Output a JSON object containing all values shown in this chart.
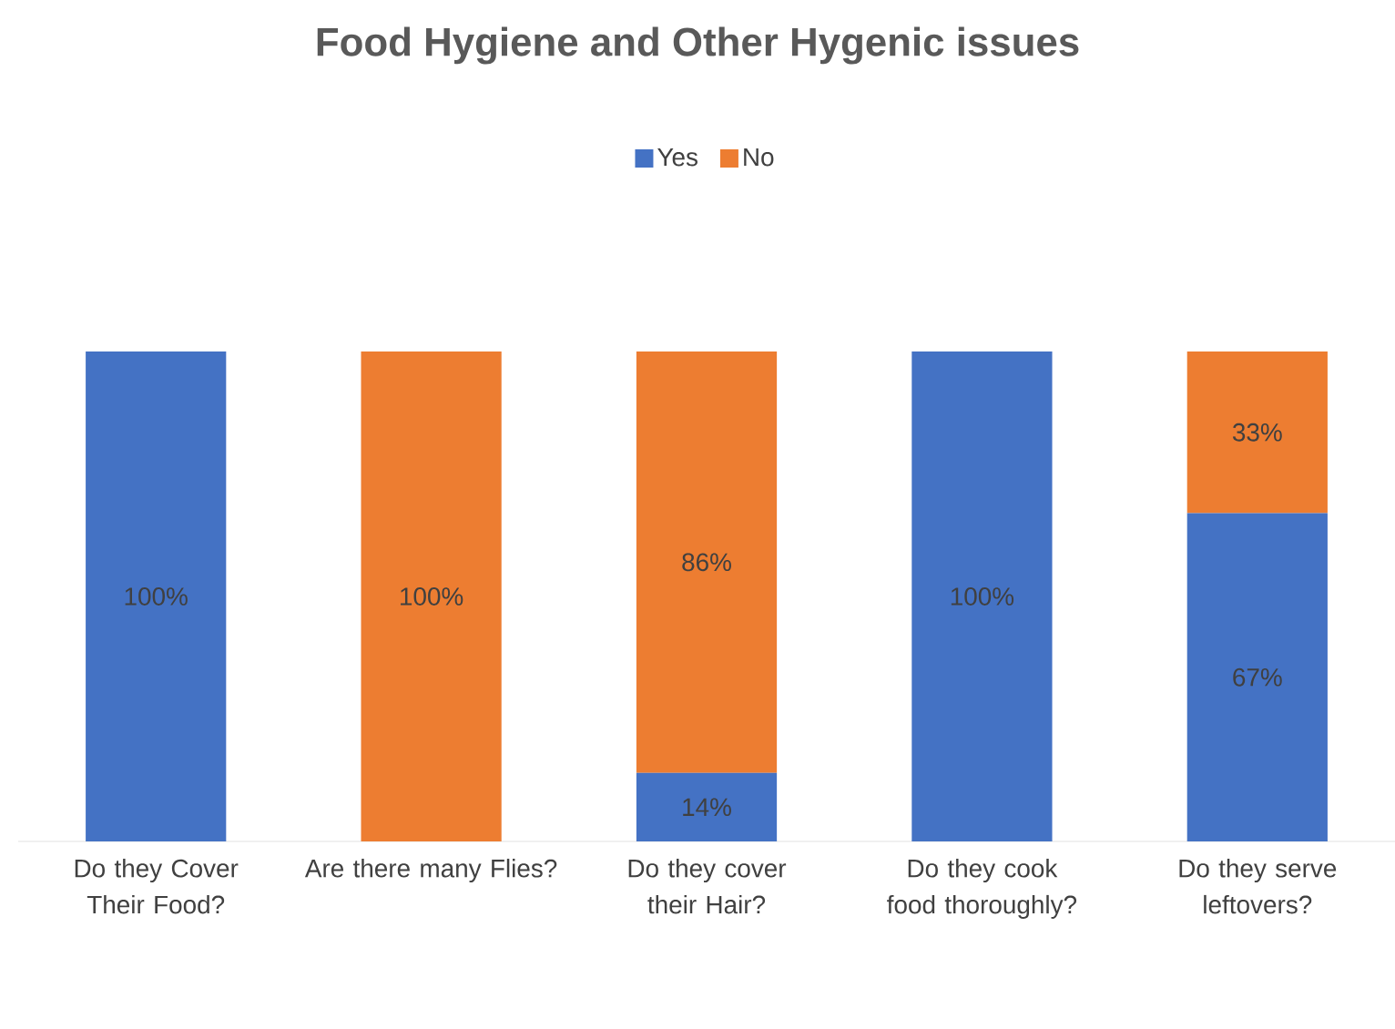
{
  "chart_data": {
    "type": "bar",
    "title": "Food Hygiene and Other Hygenic issues",
    "stacked": true,
    "legend": "top",
    "categories": [
      "Do they Cover Their Food?",
      "Are there many Flies?",
      "Do they cover their Hair?",
      "Do they cook food thoroughly?",
      "Do they serve leftovers?"
    ],
    "series": [
      {
        "name": "Yes",
        "color": "#4472c4",
        "values": [
          100,
          0,
          14,
          100,
          67
        ],
        "value_labels": [
          "100%",
          null,
          "14%",
          "100%",
          "67%"
        ]
      },
      {
        "name": "No",
        "color": "#ed7d31",
        "values": [
          0,
          100,
          86,
          0,
          33
        ],
        "value_labels": [
          null,
          "100%",
          "86%",
          null,
          "33%"
        ]
      }
    ]
  }
}
